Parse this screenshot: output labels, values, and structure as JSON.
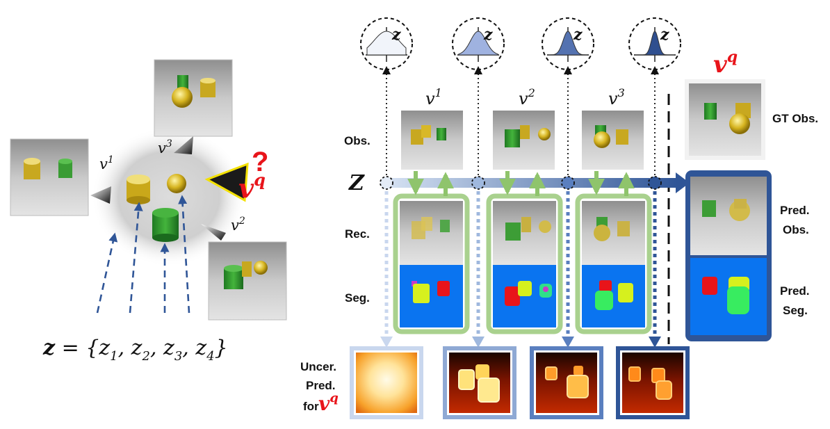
{
  "left_panel": {
    "set_label_z": "z",
    "set_label_rest": " = {z",
    "set_subs": [
      "1",
      "2",
      "3",
      "4"
    ],
    "view_labels": [
      {
        "base": "v",
        "sup": "1"
      },
      {
        "base": "v",
        "sup": "2"
      },
      {
        "base": "v",
        "sup": "3"
      }
    ],
    "query_label": {
      "base": "v",
      "sup": "q"
    },
    "question_mark": "?"
  },
  "right_panel": {
    "latent_label": "Z",
    "distribution_axis_label": "z",
    "view_labels": [
      {
        "base": "v",
        "sup": "1"
      },
      {
        "base": "v",
        "sup": "2"
      },
      {
        "base": "v",
        "sup": "3"
      }
    ],
    "query_label": {
      "base": "v",
      "sup": "q"
    },
    "row_labels": {
      "obs": "Obs.",
      "rec": "Rec.",
      "seg": "Seg.",
      "uncer_line1": "Uncer.",
      "uncer_line2": "Pred.",
      "uncer_line3": "for"
    },
    "side_labels": {
      "gt_obs": "GT Obs.",
      "pred_obs_line1": "Pred.",
      "pred_obs_line2": "Obs.",
      "pred_seg_line1": "Pred.",
      "pred_seg_line2": "Seg."
    }
  },
  "colors": {
    "arrow_blue": "#2f5597",
    "light_blue": "#c9d7ee",
    "green_frame": "#a9d18e",
    "seg_bg": "#0a74f0",
    "query_red": "#e8141a",
    "pred_box": "#2f5597"
  }
}
